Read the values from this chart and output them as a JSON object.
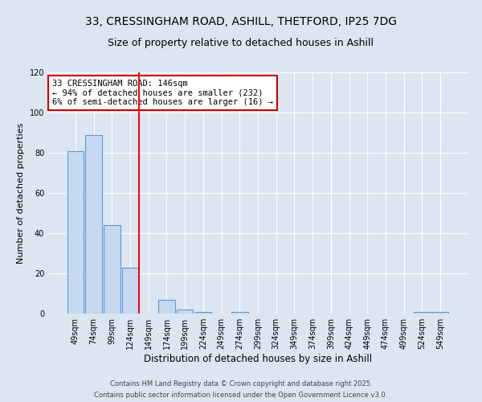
{
  "title": "33, CRESSINGHAM ROAD, ASHILL, THETFORD, IP25 7DG",
  "subtitle": "Size of property relative to detached houses in Ashill",
  "xlabel": "Distribution of detached houses by size in Ashill",
  "ylabel": "Number of detached properties",
  "bins": [
    "49sqm",
    "74sqm",
    "99sqm",
    "124sqm",
    "149sqm",
    "174sqm",
    "199sqm",
    "224sqm",
    "249sqm",
    "274sqm",
    "299sqm",
    "324sqm",
    "349sqm",
    "374sqm",
    "399sqm",
    "424sqm",
    "449sqm",
    "474sqm",
    "499sqm",
    "524sqm",
    "549sqm"
  ],
  "values": [
    81,
    89,
    44,
    23,
    0,
    7,
    2,
    1,
    0,
    1,
    0,
    0,
    0,
    0,
    0,
    0,
    0,
    0,
    0,
    1,
    1
  ],
  "bar_color": "#c6d9f0",
  "bar_edge_color": "#5b9bd5",
  "red_line_index": 4,
  "annotation_title": "33 CRESSINGHAM ROAD: 146sqm",
  "annotation_line1": "← 94% of detached houses are smaller (232)",
  "annotation_line2": "6% of semi-detached houses are larger (16) →",
  "annotation_box_color": "#ffffff",
  "annotation_box_edge_color": "#cc0000",
  "ylim": [
    0,
    120
  ],
  "yticks": [
    0,
    20,
    40,
    60,
    80,
    100,
    120
  ],
  "background_color": "#dce6f1",
  "plot_bg_color": "#dce6f1",
  "footer1": "Contains HM Land Registry data © Crown copyright and database right 2025.",
  "footer2": "Contains public sector information licensed under the Open Government Licence v3.0.",
  "title_fontsize": 10,
  "subtitle_fontsize": 9,
  "ylabel_fontsize": 8,
  "xlabel_fontsize": 8.5,
  "tick_fontsize": 7,
  "footer_fontsize": 6
}
